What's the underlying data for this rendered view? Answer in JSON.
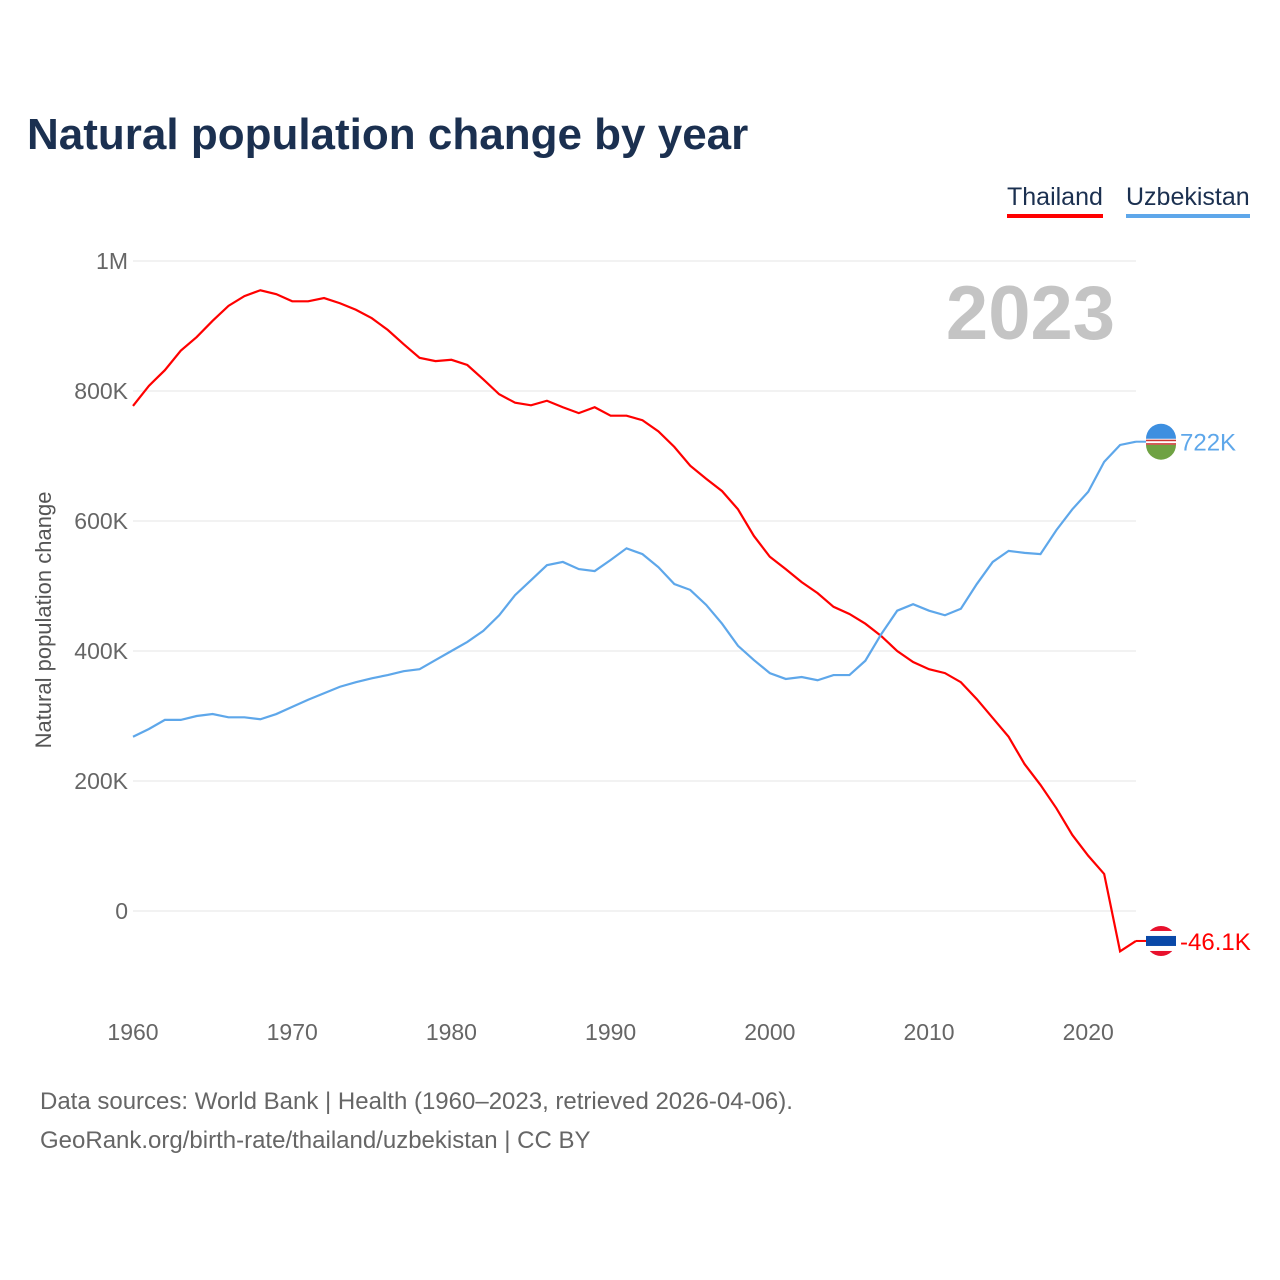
{
  "title": "Natural population change by year",
  "year_badge": "2023",
  "source_line1": "Data sources: World Bank | Health (1960–2023, retrieved 2026-04-06).",
  "source_line2": "GeoRank.org/birth-rate/thailand/uzbekistan | CC BY",
  "chart_data": {
    "type": "line",
    "title": "Natural population change by year",
    "xlabel": "",
    "ylabel": "Natural population change",
    "xlim": [
      1960,
      2023
    ],
    "ylim": [
      -150000,
      1000000
    ],
    "yticks": [
      {
        "v": 0,
        "label": "0"
      },
      {
        "v": 200000,
        "label": "200K"
      },
      {
        "v": 400000,
        "label": "400K"
      },
      {
        "v": 600000,
        "label": "600K"
      },
      {
        "v": 800000,
        "label": "800K"
      },
      {
        "v": 1000000,
        "label": "1M"
      }
    ],
    "xticks": [
      1960,
      1970,
      1980,
      1990,
      2000,
      2010,
      2020
    ],
    "legend": "top-right",
    "x_start": 1960,
    "series": [
      {
        "name": "Thailand",
        "color": "#ff0000",
        "end_label": "-46.1K",
        "flag": "thailand-flag",
        "values": [
          777,
          808,
          832,
          862,
          883,
          908,
          931,
          946,
          955,
          949,
          938,
          938,
          943,
          935,
          925,
          912,
          894,
          872,
          851,
          846,
          848,
          840,
          818,
          795,
          782,
          778,
          785,
          775,
          766,
          775,
          762,
          762,
          755,
          738,
          714,
          685,
          665,
          646,
          618,
          577,
          545,
          526,
          506,
          489,
          468,
          457,
          442,
          423,
          400,
          383,
          372,
          366,
          352,
          326,
          297,
          268,
          226,
          194,
          158,
          117,
          85,
          57,
          -62,
          -46.1
        ]
      },
      {
        "name": "Uzbekistan",
        "color": "#5ea7ea",
        "end_label": "722K",
        "flag": "uzbekistan-flag",
        "values": [
          268,
          280,
          294,
          294,
          300,
          303,
          298,
          298,
          295,
          303,
          314,
          325,
          335,
          345,
          352,
          358,
          363,
          369,
          372,
          386,
          400,
          414,
          431,
          455,
          486,
          509,
          532,
          537,
          526,
          523,
          540,
          558,
          549,
          529,
          503,
          494,
          471,
          442,
          408,
          386,
          366,
          357,
          360,
          355,
          363,
          363,
          385,
          426,
          462,
          472,
          462,
          455,
          465,
          503,
          537,
          554,
          551,
          549,
          586,
          618,
          645,
          691,
          717,
          722
        ]
      }
    ],
    "value_unit": "thousands"
  }
}
